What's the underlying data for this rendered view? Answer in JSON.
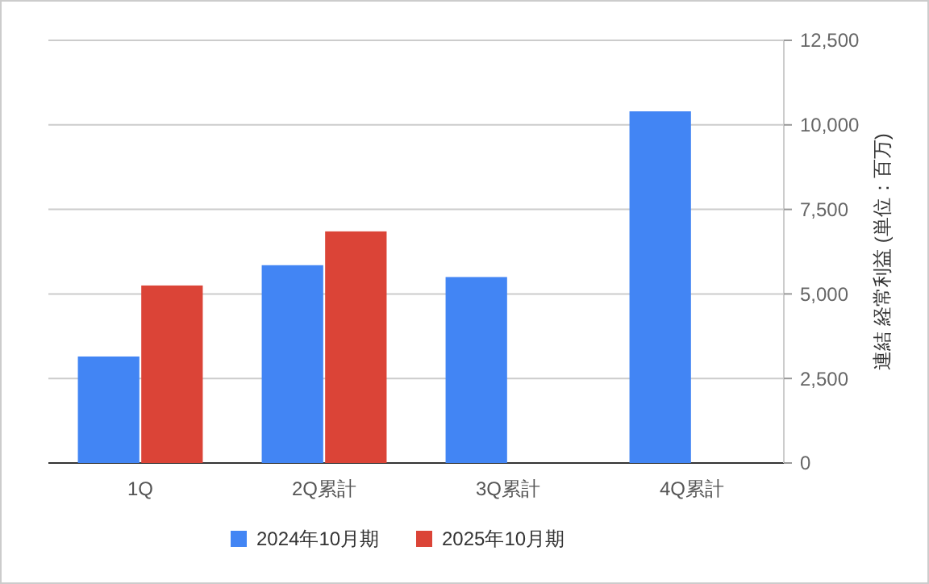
{
  "chart_data": {
    "type": "bar",
    "ylabel": "連結 経常利益 (単位：百万)",
    "categories": [
      "1Q",
      "2Q累計",
      "3Q累計",
      "4Q累計"
    ],
    "series": [
      {
        "name": "2024年10月期",
        "color": "#4285f4",
        "values": [
          3150,
          5850,
          5500,
          10400
        ]
      },
      {
        "name": "2025年10月期",
        "color": "#db4437",
        "values": [
          5250,
          6850,
          null,
          null
        ]
      }
    ],
    "ylim": [
      0,
      12500
    ],
    "yticks": [
      0,
      {
        "value": 2500,
        "label": "2,500"
      },
      {
        "value": 5000,
        "label": "5,000"
      },
      {
        "value": 7500,
        "label": "7,500"
      },
      {
        "value": 10000,
        "label": "10,000"
      },
      {
        "value": 12500,
        "label": "12,500"
      }
    ],
    "grid": true,
    "legend": "bottom"
  }
}
